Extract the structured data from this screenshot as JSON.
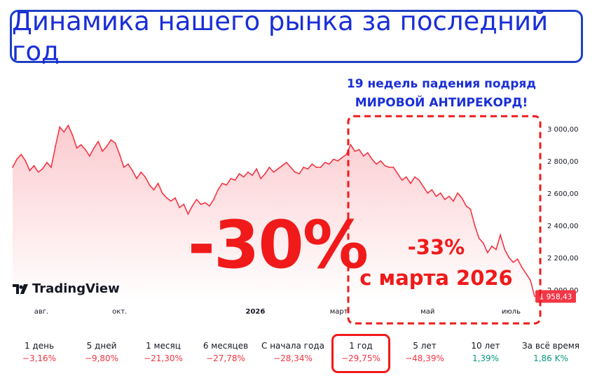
{
  "title": "Динамика нашего рынка за последний год",
  "note": {
    "line1": "19 недель падения подряд",
    "line2": "МИРОВОЙ АНТИРЕКОРД!"
  },
  "annotations": {
    "big_drop": "-30%",
    "sub_line1": "-33%",
    "sub_line2": "с марта 2026"
  },
  "logo_text": "TradingView",
  "colors": {
    "accent_blue": "#1a2fd6",
    "annotation_red": "#f01a1a",
    "line": "#f23645",
    "negative": "#f23645",
    "positive": "#089981"
  },
  "periods": [
    {
      "label": "1 день",
      "value": "−3,16%",
      "sign": "neg"
    },
    {
      "label": "5 дней",
      "value": "−9,80%",
      "sign": "neg"
    },
    {
      "label": "1 месяц",
      "value": "−21,30%",
      "sign": "neg"
    },
    {
      "label": "6 месяцев",
      "value": "−27,78%",
      "sign": "neg"
    },
    {
      "label": "С начала года",
      "value": "−28,34%",
      "sign": "neg"
    },
    {
      "label": "1 год",
      "value": "−29,75%",
      "sign": "neg",
      "selected": true
    },
    {
      "label": "5 лет",
      "value": "−48,39%",
      "sign": "neg"
    },
    {
      "label": "10 лет",
      "value": "1,39%",
      "sign": "pos"
    },
    {
      "label": "За всё время",
      "value": "1,86 K%",
      "sign": "pos"
    }
  ],
  "chart_data": {
    "type": "area",
    "x_ticks": [
      {
        "label": "авг.",
        "t": 0.055
      },
      {
        "label": "окт.",
        "t": 0.205
      },
      {
        "label": "2026",
        "t": 0.465
      },
      {
        "label": "март",
        "t": 0.625
      },
      {
        "label": "май",
        "t": 0.795
      },
      {
        "label": "июль",
        "t": 0.955
      }
    ],
    "y_ticks": [
      "3 000,00",
      "2 800,00",
      "2 600,00",
      "2 400,00",
      "2 200,00",
      "2 000,00"
    ],
    "y_tick_values": [
      3000,
      2800,
      2600,
      2400,
      2200,
      2000
    ],
    "ylim": [
      1930,
      3060
    ],
    "last_value_label": "1 958,43",
    "last_value": 1958.43,
    "series": [
      {
        "values": [
          2760,
          2810,
          2840,
          2800,
          2740,
          2770,
          2730,
          2750,
          2790,
          2760,
          2890,
          3010,
          2980,
          3020,
          2960,
          2880,
          2900,
          2870,
          2830,
          2880,
          2920,
          2860,
          2890,
          2930,
          2910,
          2840,
          2760,
          2780,
          2740,
          2690,
          2730,
          2700,
          2650,
          2620,
          2660,
          2600,
          2570,
          2550,
          2570,
          2510,
          2530,
          2470,
          2520,
          2560,
          2530,
          2540,
          2520,
          2560,
          2620,
          2660,
          2650,
          2690,
          2680,
          2720,
          2700,
          2730,
          2710,
          2750,
          2690,
          2720,
          2760,
          2730,
          2750,
          2770,
          2790,
          2760,
          2730,
          2720,
          2760,
          2750,
          2780,
          2760,
          2760,
          2790,
          2780,
          2810,
          2800,
          2820,
          2840,
          2900,
          2860,
          2870,
          2830,
          2850,
          2810,
          2780,
          2800,
          2770,
          2760,
          2760,
          2720,
          2680,
          2700,
          2660,
          2700,
          2680,
          2640,
          2600,
          2620,
          2580,
          2600,
          2560,
          2580,
          2550,
          2600,
          2570,
          2520,
          2500,
          2400,
          2320,
          2290,
          2230,
          2270,
          2250,
          2340,
          2250,
          2200,
          2170,
          2190,
          2140,
          2100,
          2060,
          1958.43
        ]
      }
    ]
  }
}
